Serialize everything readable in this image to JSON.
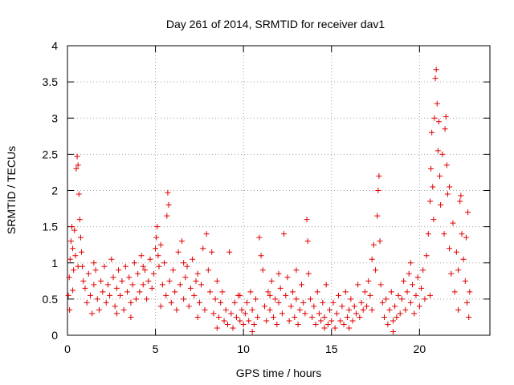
{
  "chart_data": {
    "type": "scatter",
    "title": "Day 261 of 2014, SRMTID for receiver dav1",
    "xlabel": "GPS time / hours",
    "ylabel": "SRMTID / TECUs",
    "xlim": [
      0,
      24
    ],
    "ylim": [
      0,
      4
    ],
    "xticks": [
      0,
      5,
      10,
      15,
      20
    ],
    "xtick_labels": [
      "0",
      "5",
      "10",
      "15",
      "20"
    ],
    "yticks": [
      0,
      0.5,
      1,
      1.5,
      2,
      2.5,
      3,
      3.5,
      4
    ],
    "ytick_labels": [
      "0",
      "0.5",
      "1",
      "1.5",
      "2",
      "2.5",
      "3",
      "3.5",
      "4"
    ],
    "grid": true,
    "marker": "+",
    "color": "#e00000",
    "series": [
      {
        "name": "dav1",
        "points": [
          [
            0.05,
            0.55
          ],
          [
            0.1,
            0.8
          ],
          [
            0.15,
            1.05
          ],
          [
            0.2,
            1.3
          ],
          [
            0.25,
            1.5
          ],
          [
            0.3,
            1.2
          ],
          [
            0.35,
            0.9
          ],
          [
            0.4,
            1.45
          ],
          [
            0.45,
            1.1
          ],
          [
            0.5,
            2.3
          ],
          [
            0.55,
            2.47
          ],
          [
            0.6,
            2.35
          ],
          [
            0.65,
            1.95
          ],
          [
            0.7,
            1.6
          ],
          [
            0.75,
            1.35
          ],
          [
            0.8,
            1.15
          ],
          [
            0.85,
            0.95
          ],
          [
            0.9,
            0.75
          ],
          [
            0.12,
            0.35
          ],
          [
            0.3,
            0.62
          ],
          [
            1.0,
            0.65
          ],
          [
            1.1,
            0.45
          ],
          [
            1.2,
            0.85
          ],
          [
            1.3,
            0.55
          ],
          [
            1.4,
            0.3
          ],
          [
            1.5,
            0.7
          ],
          [
            1.6,
            0.9
          ],
          [
            1.7,
            0.5
          ],
          [
            1.8,
            0.35
          ],
          [
            1.9,
            0.75
          ],
          [
            2.0,
            0.6
          ],
          [
            2.1,
            0.95
          ],
          [
            2.2,
            0.45
          ],
          [
            2.3,
            0.7
          ],
          [
            2.4,
            0.55
          ],
          [
            2.5,
            1.05
          ],
          [
            2.6,
            0.8
          ],
          [
            2.7,
            0.4
          ],
          [
            2.8,
            0.65
          ],
          [
            2.9,
            0.9
          ],
          [
            3.0,
            0.55
          ],
          [
            3.1,
            0.75
          ],
          [
            3.2,
            0.35
          ],
          [
            3.3,
            0.95
          ],
          [
            3.4,
            0.6
          ],
          [
            3.5,
            0.8
          ],
          [
            3.6,
            0.45
          ],
          [
            3.7,
            0.7
          ],
          [
            3.8,
            1.0
          ],
          [
            3.9,
            0.5
          ],
          [
            4.0,
            0.85
          ],
          [
            4.1,
            0.6
          ],
          [
            4.2,
            1.1
          ],
          [
            4.3,
            0.7
          ],
          [
            4.4,
            0.9
          ],
          [
            4.5,
            0.5
          ],
          [
            4.6,
            0.75
          ],
          [
            4.7,
            1.05
          ],
          [
            4.8,
            0.65
          ],
          [
            4.9,
            0.85
          ],
          [
            5.0,
            1.2
          ],
          [
            5.05,
            1.35
          ],
          [
            5.1,
            1.5
          ],
          [
            5.15,
            1.1
          ],
          [
            5.2,
            0.95
          ],
          [
            5.3,
            1.25
          ],
          [
            5.4,
            0.7
          ],
          [
            5.5,
            1.0
          ],
          [
            5.6,
            0.55
          ],
          [
            5.65,
            1.65
          ],
          [
            5.7,
            1.97
          ],
          [
            5.75,
            1.8
          ],
          [
            5.8,
            0.75
          ],
          [
            5.9,
            0.45
          ],
          [
            6.0,
            0.9
          ],
          [
            6.1,
            0.6
          ],
          [
            6.2,
            0.35
          ],
          [
            6.3,
            1.15
          ],
          [
            6.4,
            0.7
          ],
          [
            6.5,
            1.3
          ],
          [
            6.6,
            0.5
          ],
          [
            6.7,
            0.8
          ],
          [
            6.8,
            0.95
          ],
          [
            6.9,
            0.4
          ],
          [
            7.0,
            0.65
          ],
          [
            7.1,
            1.05
          ],
          [
            7.2,
            0.55
          ],
          [
            7.3,
            0.75
          ],
          [
            7.4,
            0.85
          ],
          [
            7.5,
            0.45
          ],
          [
            7.6,
            0.7
          ],
          [
            7.7,
            1.2
          ],
          [
            7.8,
            0.35
          ],
          [
            7.9,
            1.4
          ],
          [
            8.0,
            0.9
          ],
          [
            8.1,
            0.6
          ],
          [
            8.2,
            1.15
          ],
          [
            8.3,
            0.3
          ],
          [
            8.4,
            0.5
          ],
          [
            8.5,
            0.75
          ],
          [
            8.6,
            0.25
          ],
          [
            8.7,
            0.45
          ],
          [
            8.8,
            0.6
          ],
          [
            8.9,
            0.2
          ],
          [
            9.0,
            0.35
          ],
          [
            9.1,
            0.15
          ],
          [
            9.2,
            1.15
          ],
          [
            9.3,
            0.3
          ],
          [
            9.4,
            0.1
          ],
          [
            9.5,
            0.45
          ],
          [
            9.6,
            0.25
          ],
          [
            9.7,
            0.55
          ],
          [
            9.8,
            0.2
          ],
          [
            9.9,
            0.35
          ],
          [
            10.0,
            0.15
          ],
          [
            10.1,
            0.3
          ],
          [
            10.2,
            0.45
          ],
          [
            10.3,
            0.2
          ],
          [
            10.4,
            0.6
          ],
          [
            10.5,
            0.35
          ],
          [
            10.6,
            0.15
          ],
          [
            10.7,
            0.5
          ],
          [
            10.8,
            0.25
          ],
          [
            10.9,
            1.35
          ],
          [
            11.0,
            1.1
          ],
          [
            11.1,
            0.9
          ],
          [
            11.2,
            0.4
          ],
          [
            11.3,
            0.2
          ],
          [
            11.4,
            0.6
          ],
          [
            11.5,
            0.35
          ],
          [
            11.6,
            0.75
          ],
          [
            11.7,
            0.25
          ],
          [
            11.8,
            0.5
          ],
          [
            11.9,
            0.15
          ],
          [
            12.0,
            0.45
          ],
          [
            12.1,
            0.65
          ],
          [
            12.2,
            0.3
          ],
          [
            12.3,
            1.4
          ],
          [
            12.4,
            0.55
          ],
          [
            12.5,
            0.8
          ],
          [
            12.6,
            0.2
          ],
          [
            12.7,
            0.4
          ],
          [
            12.8,
            0.6
          ],
          [
            12.9,
            0.25
          ],
          [
            13.0,
            0.5
          ],
          [
            13.1,
            0.15
          ],
          [
            13.2,
            0.35
          ],
          [
            13.3,
            0.7
          ],
          [
            13.4,
            0.45
          ],
          [
            13.5,
            0.3
          ],
          [
            13.6,
            1.6
          ],
          [
            13.65,
            1.3
          ],
          [
            13.7,
            0.85
          ],
          [
            13.8,
            0.5
          ],
          [
            13.9,
            0.25
          ],
          [
            14.0,
            0.4
          ],
          [
            14.1,
            0.15
          ],
          [
            14.2,
            0.6
          ],
          [
            14.3,
            0.3
          ],
          [
            14.4,
            0.2
          ],
          [
            14.5,
            0.45
          ],
          [
            14.6,
            0.25
          ],
          [
            14.7,
            0.7
          ],
          [
            14.8,
            0.15
          ],
          [
            14.9,
            0.35
          ],
          [
            15.0,
            0.2
          ],
          [
            15.1,
            0.45
          ],
          [
            15.2,
            0.1
          ],
          [
            15.3,
            0.3
          ],
          [
            15.4,
            0.55
          ],
          [
            15.5,
            0.2
          ],
          [
            15.6,
            0.4
          ],
          [
            15.7,
            0.15
          ],
          [
            15.8,
            0.6
          ],
          [
            15.9,
            0.25
          ],
          [
            16.0,
            0.35
          ],
          [
            16.1,
            0.5
          ],
          [
            16.2,
            0.2
          ],
          [
            16.3,
            0.4
          ],
          [
            16.4,
            0.3
          ],
          [
            16.5,
            0.7
          ],
          [
            16.6,
            0.25
          ],
          [
            16.7,
            0.45
          ],
          [
            16.8,
            0.35
          ],
          [
            16.9,
            0.6
          ],
          [
            17.0,
            0.4
          ],
          [
            17.1,
            0.75
          ],
          [
            17.2,
            0.55
          ],
          [
            17.3,
            1.05
          ],
          [
            17.4,
            1.25
          ],
          [
            17.5,
            0.9
          ],
          [
            17.6,
            1.65
          ],
          [
            17.65,
            2.0
          ],
          [
            17.7,
            2.2
          ],
          [
            17.75,
            1.3
          ],
          [
            17.8,
            0.7
          ],
          [
            17.9,
            0.45
          ],
          [
            18.0,
            0.25
          ],
          [
            18.1,
            0.5
          ],
          [
            18.2,
            0.15
          ],
          [
            18.3,
            0.35
          ],
          [
            18.4,
            0.6
          ],
          [
            18.5,
            0.2
          ],
          [
            18.6,
            0.4
          ],
          [
            18.7,
            0.25
          ],
          [
            18.8,
            0.55
          ],
          [
            18.9,
            0.3
          ],
          [
            19.0,
            0.5
          ],
          [
            19.1,
            0.75
          ],
          [
            19.2,
            0.35
          ],
          [
            19.3,
            0.6
          ],
          [
            19.4,
            0.85
          ],
          [
            19.5,
            0.45
          ],
          [
            19.6,
            0.7
          ],
          [
            19.7,
            0.3
          ],
          [
            19.8,
            0.55
          ],
          [
            19.9,
            0.8
          ],
          [
            20.0,
            0.4
          ],
          [
            20.1,
            0.65
          ],
          [
            20.2,
            0.9
          ],
          [
            20.3,
            0.5
          ],
          [
            20.4,
            1.1
          ],
          [
            20.5,
            1.4
          ],
          [
            20.6,
            1.85
          ],
          [
            20.65,
            2.3
          ],
          [
            20.7,
            2.8
          ],
          [
            20.75,
            2.05
          ],
          [
            20.8,
            1.6
          ],
          [
            20.85,
            3.0
          ],
          [
            20.9,
            3.55
          ],
          [
            20.95,
            3.67
          ],
          [
            21.0,
            3.2
          ],
          [
            21.05,
            2.55
          ],
          [
            21.1,
            2.95
          ],
          [
            21.15,
            2.2
          ],
          [
            21.2,
            1.8
          ],
          [
            21.3,
            2.5
          ],
          [
            21.4,
            1.4
          ],
          [
            21.45,
            2.85
          ],
          [
            21.5,
            3.02
          ],
          [
            21.55,
            2.35
          ],
          [
            21.6,
            1.95
          ],
          [
            21.7,
            1.2
          ],
          [
            21.8,
            0.85
          ],
          [
            21.9,
            1.55
          ],
          [
            22.0,
            0.6
          ],
          [
            22.1,
            1.15
          ],
          [
            22.2,
            0.9
          ],
          [
            22.3,
            1.85
          ],
          [
            22.35,
            1.93
          ],
          [
            22.4,
            1.4
          ],
          [
            22.5,
            1.05
          ],
          [
            22.6,
            0.75
          ],
          [
            22.65,
            1.35
          ],
          [
            22.7,
            0.45
          ],
          [
            22.75,
            1.7
          ],
          [
            22.8,
            0.25
          ],
          [
            22.85,
            0.6
          ],
          [
            0.6,
            0.95
          ],
          [
            1.5,
            1.0
          ],
          [
            2.8,
            0.3
          ],
          [
            4.3,
            0.95
          ],
          [
            6.6,
            1.0
          ],
          [
            8.5,
            0.1
          ],
          [
            11.5,
            0.55
          ],
          [
            13.0,
            0.9
          ],
          [
            16.0,
            0.1
          ],
          [
            18.5,
            0.05
          ],
          [
            19.5,
            1.0
          ],
          [
            20.6,
            0.55
          ],
          [
            21.7,
            2.05
          ],
          [
            22.2,
            0.35
          ],
          [
            9.8,
            0.55
          ],
          [
            12.0,
            0.85
          ],
          [
            17.3,
            0.35
          ],
          [
            3.6,
            0.25
          ],
          [
            5.3,
            0.4
          ],
          [
            7.4,
            0.25
          ],
          [
            10.5,
            0.05
          ],
          [
            14.6,
            0.1
          ]
        ]
      }
    ]
  }
}
